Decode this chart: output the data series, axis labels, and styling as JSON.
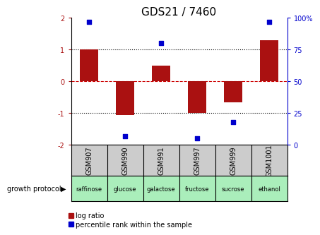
{
  "title": "GDS21 / 7460",
  "samples": [
    "GSM907",
    "GSM990",
    "GSM991",
    "GSM997",
    "GSM999",
    "GSM1001"
  ],
  "log_ratios": [
    1.0,
    -1.05,
    0.5,
    -1.0,
    -0.65,
    1.3
  ],
  "percentile_ranks": [
    97,
    7,
    80,
    5,
    18,
    97
  ],
  "growth_protocol_labels": [
    "raffinose",
    "glucose",
    "galactose",
    "fructose",
    "sucrose",
    "ethanol"
  ],
  "bar_color": "#aa1111",
  "scatter_color": "#0000cc",
  "ylim_left": [
    -2,
    2
  ],
  "ylim_right": [
    0,
    100
  ],
  "yticks_left": [
    -2,
    -1,
    0,
    1,
    2
  ],
  "yticks_right": [
    0,
    25,
    50,
    75,
    100
  ],
  "yticklabels_right": [
    "0",
    "25",
    "50",
    "75",
    "100%"
  ],
  "hline_y": [
    0,
    1,
    -1
  ],
  "hline_styles": [
    "--",
    ":",
    ":"
  ],
  "hline_colors": [
    "#cc0000",
    "#000000",
    "#000000"
  ],
  "title_fontsize": 11,
  "tick_fontsize": 7,
  "label_fontsize": 7,
  "legend_fontsize": 7,
  "bar_width": 0.5,
  "marker_size": 5,
  "bg_color": "#ffffff",
  "box_gray": "#cccccc",
  "box_green": "#aaeebb",
  "growth_protocol_text": "growth protocol",
  "legend_log_ratio": "log ratio",
  "legend_percentile": "percentile rank within the sample"
}
